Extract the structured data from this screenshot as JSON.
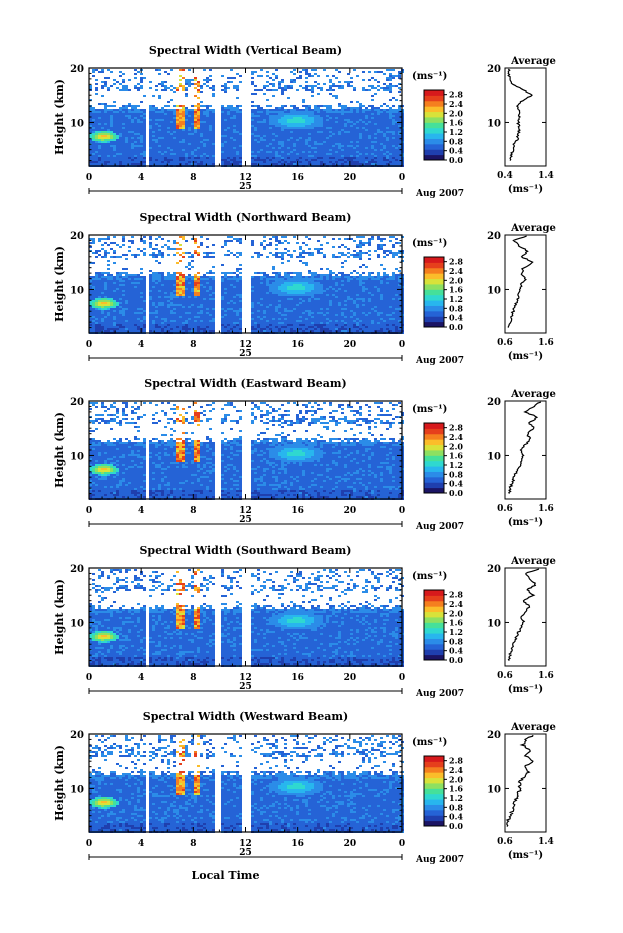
{
  "figure": {
    "date_label": "Aug 2007",
    "day_label": "25",
    "xlabel": "Local Time",
    "colorbar_unit": "(ms⁻¹)",
    "average_title": "Average",
    "average_unit": "(ms⁻¹)"
  },
  "colors": {
    "colormap": [
      "#1b1464",
      "#1f3fae",
      "#2563d6",
      "#2b8ce8",
      "#28b6ee",
      "#2fd8d0",
      "#45e09a",
      "#8de061",
      "#d8e23a",
      "#fbbd2a",
      "#f57f1f",
      "#e63f1c",
      "#d7191c"
    ],
    "background": "#ffffff",
    "gaps": "#ffffff"
  },
  "chart_data": [
    {
      "type": "heatmap",
      "title": "Spectral Width (Vertical Beam)",
      "xlabel": "",
      "ylabel": "Height (km)",
      "xlim": [
        0,
        24
      ],
      "ylim": [
        2,
        20
      ],
      "x_ticks": [
        "0",
        "4",
        "8",
        "12",
        "16",
        "20",
        "0"
      ],
      "y_ticks": [
        "10",
        "20"
      ],
      "colorbar": {
        "unit": "(ms⁻¹)",
        "ticks": [
          "0.0",
          "0.4",
          "0.8",
          "1.2",
          "1.6",
          "2.0",
          "2.4",
          "2.8"
        ],
        "range": [
          0,
          3.0
        ]
      },
      "data_gaps_hours": [
        [
          4.2,
          4.5
        ],
        [
          9.6,
          10.1
        ],
        [
          11.7,
          12.2
        ]
      ],
      "average_profile": {
        "title": "Average",
        "unit": "(ms⁻¹)",
        "xlim": [
          0.4,
          1.4
        ],
        "x_ticks": [
          "0.4",
          "1.4"
        ],
        "heights": [
          3,
          4,
          5,
          6,
          7,
          8,
          9,
          10,
          11,
          12,
          13,
          14,
          15,
          16,
          17,
          18,
          19,
          20
        ],
        "values": [
          0.52,
          0.55,
          0.6,
          0.62,
          0.7,
          0.74,
          0.75,
          0.72,
          0.74,
          0.78,
          0.7,
          0.82,
          1.05,
          0.85,
          0.6,
          0.52,
          0.5,
          0.48
        ]
      }
    },
    {
      "type": "heatmap",
      "title": "Spectral Width (Northward Beam)",
      "xlabel": "",
      "ylabel": "Height (km)",
      "xlim": [
        0,
        24
      ],
      "ylim": [
        2,
        20
      ],
      "x_ticks": [
        "0",
        "4",
        "8",
        "12",
        "16",
        "20",
        "0"
      ],
      "y_ticks": [
        "10",
        "20"
      ],
      "colorbar": {
        "unit": "(ms⁻¹)",
        "ticks": [
          "0.0",
          "0.4",
          "0.8",
          "1.2",
          "1.6",
          "2.0",
          "2.4",
          "2.8"
        ],
        "range": [
          0,
          3.0
        ]
      },
      "data_gaps_hours": [
        [
          4.2,
          4.5
        ],
        [
          9.6,
          10.1
        ],
        [
          11.7,
          12.2
        ]
      ],
      "average_profile": {
        "title": "Average",
        "unit": "(ms⁻¹)",
        "xlim": [
          0.6,
          1.6
        ],
        "x_ticks": [
          "0.6",
          "1.6"
        ],
        "heights": [
          3,
          4,
          5,
          6,
          7,
          8,
          9,
          10,
          11,
          12,
          13,
          14,
          15,
          16,
          17,
          18,
          19,
          20
        ],
        "values": [
          0.68,
          0.72,
          0.75,
          0.8,
          0.85,
          0.9,
          0.92,
          0.95,
          1.0,
          1.1,
          1.0,
          1.05,
          1.3,
          1.0,
          1.15,
          0.95,
          0.8,
          1.2
        ]
      }
    },
    {
      "type": "heatmap",
      "title": "Spectral Width (Eastward Beam)",
      "xlabel": "",
      "ylabel": "Height (km)",
      "xlim": [
        0,
        24
      ],
      "ylim": [
        2,
        20
      ],
      "x_ticks": [
        "0",
        "4",
        "8",
        "12",
        "16",
        "20",
        "0"
      ],
      "y_ticks": [
        "10",
        "20"
      ],
      "colorbar": {
        "unit": "(ms⁻¹)",
        "ticks": [
          "0.0",
          "0.4",
          "0.8",
          "1.2",
          "1.6",
          "2.0",
          "2.4",
          "2.8"
        ],
        "range": [
          0,
          3.0
        ]
      },
      "data_gaps_hours": [
        [
          4.2,
          4.5
        ],
        [
          9.6,
          10.1
        ],
        [
          11.7,
          12.2
        ]
      ],
      "average_profile": {
        "title": "Average",
        "unit": "(ms⁻¹)",
        "xlim": [
          0.6,
          1.6
        ],
        "x_ticks": [
          "0.6",
          "1.6"
        ],
        "heights": [
          3,
          4,
          5,
          6,
          7,
          8,
          9,
          10,
          11,
          12,
          13,
          14,
          15,
          16,
          17,
          18,
          19,
          20
        ],
        "values": [
          0.7,
          0.72,
          0.78,
          0.82,
          0.88,
          0.95,
          1.0,
          1.05,
          1.0,
          1.1,
          1.2,
          1.15,
          1.3,
          1.2,
          1.4,
          1.1,
          1.3,
          1.5
        ]
      }
    },
    {
      "type": "heatmap",
      "title": "Spectral Width (Southward Beam)",
      "xlabel": "",
      "ylabel": "Height (km)",
      "xlim": [
        0,
        24
      ],
      "ylim": [
        2,
        20
      ],
      "x_ticks": [
        "0",
        "4",
        "8",
        "12",
        "16",
        "20",
        "0"
      ],
      "y_ticks": [
        "10",
        "20"
      ],
      "colorbar": {
        "unit": "(ms⁻¹)",
        "ticks": [
          "0.0",
          "0.4",
          "0.8",
          "1.2",
          "1.6",
          "2.0",
          "2.4",
          "2.8"
        ],
        "range": [
          0,
          3.0
        ]
      },
      "data_gaps_hours": [
        [
          4.2,
          4.5
        ],
        [
          9.6,
          10.1
        ],
        [
          11.7,
          12.2
        ]
      ],
      "average_profile": {
        "title": "Average",
        "unit": "(ms⁻¹)",
        "xlim": [
          0.6,
          1.6
        ],
        "x_ticks": [
          "0.6",
          "1.6"
        ],
        "heights": [
          3,
          4,
          5,
          6,
          7,
          8,
          9,
          10,
          11,
          12,
          13,
          14,
          15,
          16,
          17,
          18,
          19,
          20
        ],
        "values": [
          0.68,
          0.72,
          0.76,
          0.8,
          0.86,
          0.92,
          0.98,
          1.05,
          1.0,
          1.1,
          1.2,
          1.05,
          1.3,
          1.15,
          1.35,
          1.2,
          1.1,
          1.5
        ]
      }
    },
    {
      "type": "heatmap",
      "title": "Spectral Width (Westward Beam)",
      "xlabel": "Local Time",
      "ylabel": "Height (km)",
      "xlim": [
        0,
        24
      ],
      "ylim": [
        2,
        20
      ],
      "x_ticks": [
        "0",
        "4",
        "8",
        "12",
        "16",
        "20",
        "0"
      ],
      "y_ticks": [
        "10",
        "20"
      ],
      "colorbar": {
        "unit": "(ms⁻¹)",
        "ticks": [
          "0.0",
          "0.4",
          "0.8",
          "1.2",
          "1.6",
          "2.0",
          "2.4",
          "2.8"
        ],
        "range": [
          0,
          3.0
        ]
      },
      "data_gaps_hours": [
        [
          4.2,
          4.5
        ],
        [
          9.6,
          10.1
        ],
        [
          11.7,
          12.2
        ]
      ],
      "average_profile": {
        "title": "Average",
        "unit": "(ms⁻¹)",
        "xlim": [
          0.6,
          1.4
        ],
        "x_ticks": [
          "0.6",
          "1.4"
        ],
        "heights": [
          3,
          4,
          5,
          6,
          7,
          8,
          9,
          10,
          11,
          12,
          13,
          14,
          15,
          16,
          17,
          18,
          19,
          20
        ],
        "values": [
          0.62,
          0.66,
          0.7,
          0.75,
          0.78,
          0.82,
          0.86,
          0.9,
          0.88,
          0.95,
          1.05,
          0.98,
          1.15,
          1.0,
          1.1,
          0.95,
          1.0,
          1.2
        ]
      }
    }
  ]
}
